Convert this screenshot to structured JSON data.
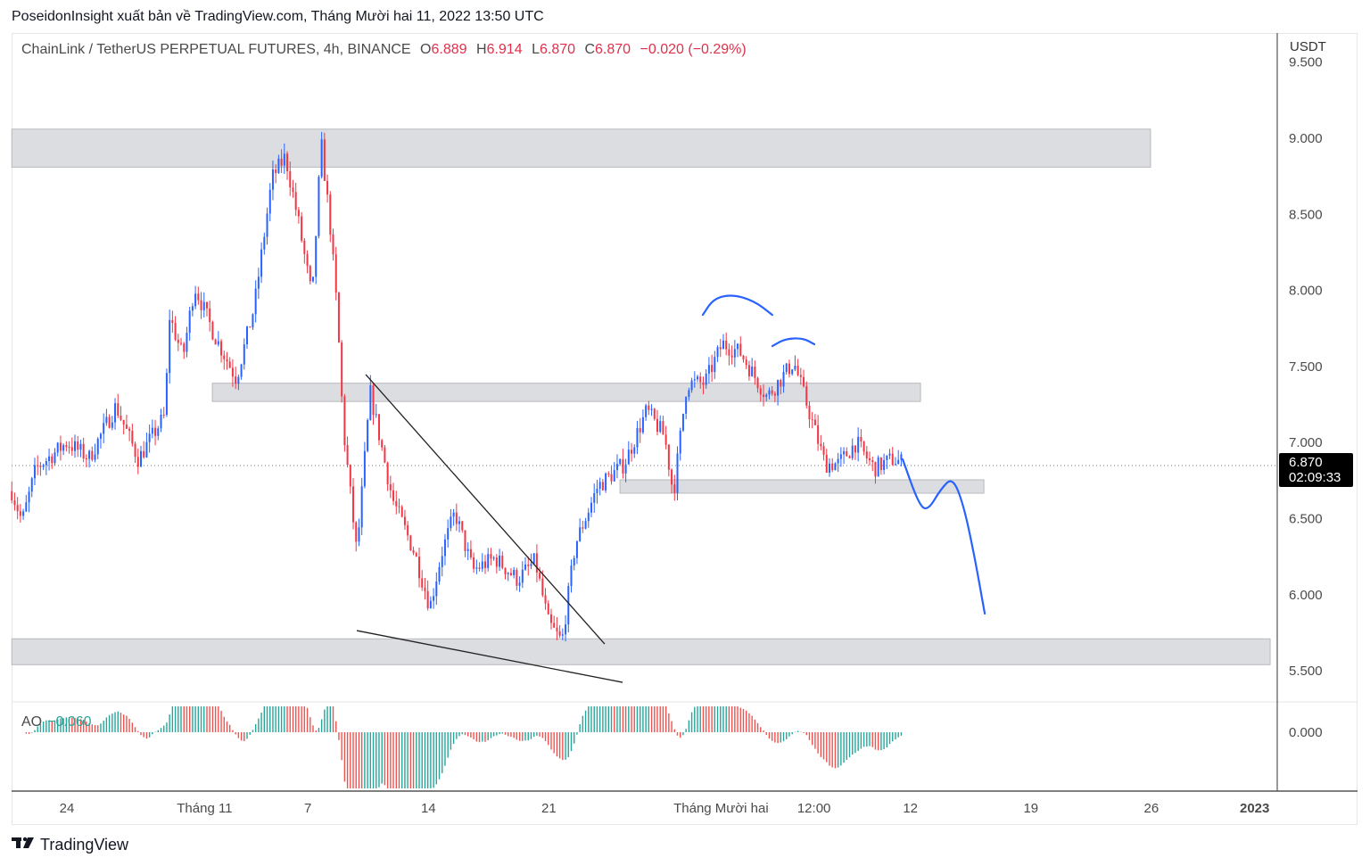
{
  "publisher_line": "PoseidonInsight xuất bản về TradingView.com, Tháng Mười hai 11, 2022 13:50 UTC",
  "legend": {
    "symbol": "ChainLink / TetherUS PERPETUAL FUTURES, 4h, BINANCE",
    "open_label": "O",
    "open": "6.889",
    "high_label": "H",
    "high": "6.914",
    "low_label": "L",
    "low": "6.870",
    "close_label": "C",
    "close": "6.870",
    "change": "−0.020 (−0.29%)"
  },
  "price_axis": {
    "currency": "USDT",
    "last_price": "6.870",
    "countdown": "02:09:33"
  },
  "indicator": {
    "name": "AO",
    "value": "−0.060",
    "zero_label": "0.000"
  },
  "brand": {
    "name": "TradingView",
    "logo_text": "17"
  },
  "colors": {
    "up": "#2962ff",
    "down": "#f23645",
    "ao_up": "#26a69a",
    "ao_down": "#ef5350",
    "zone": "#dcdde0",
    "drawing": "#2962ff"
  },
  "chart_data": {
    "type": "candlestick",
    "title": "ChainLink / TetherUS PERPETUAL FUTURES, 4h, BINANCE",
    "x_unit": "days since Oct 24 2022",
    "xlim": [
      -3.2,
      69.9
    ],
    "ylim": [
      5.31,
      9.5
    ],
    "y_ticks": [
      "5.500",
      "6.000",
      "6.500",
      "7.000",
      "7.500",
      "8.000",
      "8.500",
      "9.000",
      "9.500"
    ],
    "x_ticks": [
      {
        "label": "24",
        "x": 0
      },
      {
        "label": "Tháng 11",
        "x": 8
      },
      {
        "label": "7",
        "x": 14
      },
      {
        "label": "14",
        "x": 21
      },
      {
        "label": "21",
        "x": 28
      },
      {
        "label": "Tháng Mười hai",
        "x": 38
      },
      {
        "label": "12:00",
        "x": 43.4
      },
      {
        "label": "12",
        "x": 49
      },
      {
        "label": "19",
        "x": 56
      },
      {
        "label": "26",
        "x": 63
      },
      {
        "label": "2023",
        "x": 69
      }
    ],
    "price_path": [
      [
        -3.2,
        6.68
      ],
      [
        -2.6,
        6.48
      ],
      [
        -1.8,
        6.83
      ],
      [
        0,
        7.0
      ],
      [
        1.3,
        6.9
      ],
      [
        2.85,
        7.24
      ],
      [
        4.15,
        6.89
      ],
      [
        5.7,
        7.18
      ],
      [
        5.96,
        7.83
      ],
      [
        6.74,
        7.56
      ],
      [
        7.41,
        8.03
      ],
      [
        8.55,
        7.71
      ],
      [
        9.84,
        7.42
      ],
      [
        10.88,
        7.89
      ],
      [
        11.92,
        8.74
      ],
      [
        12.69,
        8.88
      ],
      [
        13.47,
        8.44
      ],
      [
        14.25,
        7.94
      ],
      [
        14.77,
        8.97
      ],
      [
        15.28,
        8.44
      ],
      [
        15.7,
        7.86
      ],
      [
        16.06,
        7.09
      ],
      [
        16.84,
        6.27
      ],
      [
        17.62,
        7.33
      ],
      [
        18.91,
        6.63
      ],
      [
        20.21,
        6.27
      ],
      [
        21.09,
        5.92
      ],
      [
        21.76,
        6.27
      ],
      [
        22.54,
        6.54
      ],
      [
        23.58,
        6.16
      ],
      [
        24.87,
        6.24
      ],
      [
        26.17,
        6.1
      ],
      [
        27.2,
        6.22
      ],
      [
        27.98,
        5.81
      ],
      [
        28.76,
        5.69
      ],
      [
        29.53,
        6.33
      ],
      [
        30.83,
        6.71
      ],
      [
        32.38,
        6.86
      ],
      [
        33.68,
        7.21
      ],
      [
        34.72,
        7.04
      ],
      [
        35.23,
        6.66
      ],
      [
        36.01,
        7.39
      ],
      [
        37.05,
        7.39
      ],
      [
        38.08,
        7.65
      ],
      [
        39.12,
        7.59
      ],
      [
        40.67,
        7.3
      ],
      [
        42.23,
        7.53
      ],
      [
        43.01,
        7.24
      ],
      [
        44.04,
        6.86
      ],
      [
        44.82,
        6.86
      ],
      [
        45.85,
        7.0
      ],
      [
        46.89,
        6.83
      ],
      [
        47.93,
        6.89
      ],
      [
        48.55,
        6.87
      ]
    ],
    "zones": [
      {
        "x0": -3.2,
        "x1": 62.95,
        "y0": 8.81,
        "y1": 9.06
      },
      {
        "x0": 8.45,
        "x1": 49.59,
        "y0": 7.27,
        "y1": 7.39
      },
      {
        "x0": 32.13,
        "x1": 53.27,
        "y0": 6.667,
        "y1": 6.755
      },
      {
        "x0": -3.2,
        "x1": 69.9,
        "y0": 5.54,
        "y1": 5.71
      }
    ],
    "trendlines": [
      {
        "points": [
          [
            17.36,
            7.447
          ],
          [
            31.24,
            5.676
          ]
        ]
      },
      {
        "points": [
          [
            16.84,
            5.764
          ],
          [
            32.28,
            5.424
          ]
        ]
      }
    ],
    "drawings": [
      {
        "name": "forecast-path",
        "points": [
          [
            48.55,
            6.89
          ],
          [
            49.48,
            6.597
          ],
          [
            50.0,
            6.55
          ],
          [
            50.78,
            6.696
          ],
          [
            51.45,
            6.772
          ],
          [
            52.07,
            6.597
          ],
          [
            52.69,
            6.274
          ],
          [
            53.32,
            5.876
          ]
        ]
      },
      {
        "name": "head-arc",
        "points": [
          [
            36.94,
            7.839
          ],
          [
            37.56,
            7.945
          ],
          [
            38.6,
            7.974
          ],
          [
            39.9,
            7.933
          ],
          [
            40.98,
            7.839
          ]
        ]
      },
      {
        "name": "shoulder-arc",
        "points": [
          [
            40.98,
            7.634
          ],
          [
            41.71,
            7.681
          ],
          [
            42.75,
            7.687
          ],
          [
            43.42,
            7.646
          ]
        ]
      }
    ]
  }
}
